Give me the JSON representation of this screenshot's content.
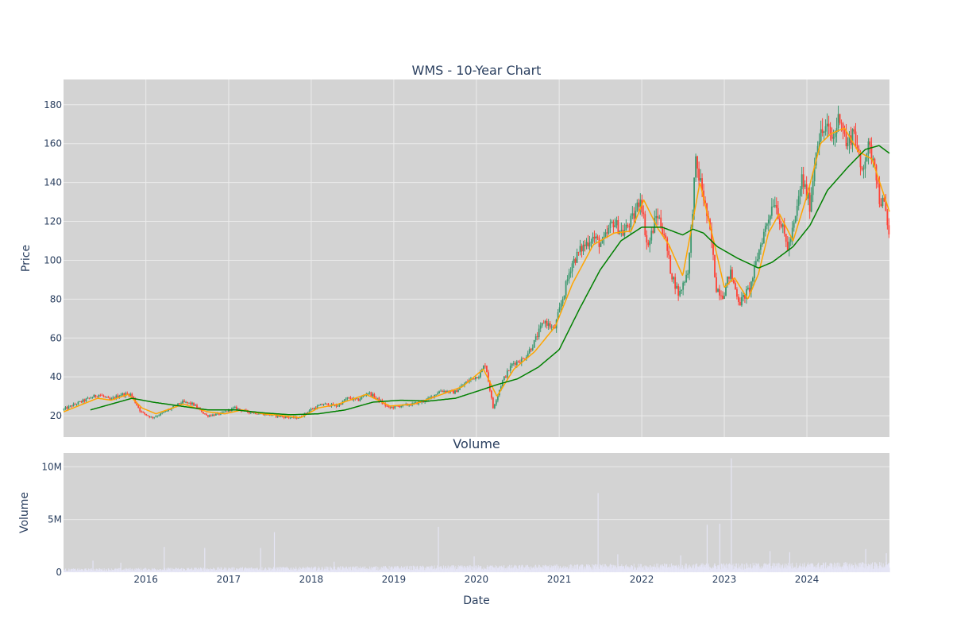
{
  "colors": {
    "panel_bg": "#d3d3d3",
    "grid": "#ebebeb",
    "increasing": "#3d9970",
    "decreasing": "#ff4136",
    "ma_short": "#ffa500",
    "ma_long": "#008000",
    "volume": "#e5e5f5",
    "text": "#2a3f5f"
  },
  "chart_data": [
    {
      "type": "candlestick",
      "title": "WMS - 10-Year Chart",
      "ylabel": "Price",
      "xlabel": "",
      "x_range": [
        "2015-01-02",
        "2024-12-31"
      ],
      "ylim": [
        9,
        193
      ],
      "y_ticks": [
        20,
        40,
        60,
        80,
        100,
        120,
        140,
        160,
        180
      ],
      "y_tick_labels": [
        "20",
        "40",
        "60",
        "80",
        "100",
        "120",
        "140",
        "160",
        "180"
      ],
      "x_gridlines": [
        "2016-01-01",
        "2017-01-01",
        "2018-01-01",
        "2019-01-01",
        "2020-01-01",
        "2021-01-01",
        "2022-01-01",
        "2023-01-01",
        "2024-01-01"
      ],
      "price_anchors": [
        [
          "2015-01-02",
          23
        ],
        [
          "2015-03-01",
          26
        ],
        [
          "2015-05-01",
          29
        ],
        [
          "2015-06-15",
          31
        ],
        [
          "2015-08-01",
          28
        ],
        [
          "2015-09-15",
          31
        ],
        [
          "2015-11-01",
          31
        ],
        [
          "2015-12-15",
          22
        ],
        [
          "2016-02-01",
          19
        ],
        [
          "2016-03-15",
          21
        ],
        [
          "2016-05-01",
          24
        ],
        [
          "2016-06-15",
          27
        ],
        [
          "2016-08-01",
          26
        ],
        [
          "2016-09-01",
          23
        ],
        [
          "2016-10-01",
          20
        ],
        [
          "2016-12-01",
          21
        ],
        [
          "2017-02-01",
          24
        ],
        [
          "2017-04-01",
          22
        ],
        [
          "2017-06-01",
          21
        ],
        [
          "2017-08-01",
          20
        ],
        [
          "2017-10-01",
          19
        ],
        [
          "2017-11-15",
          19
        ],
        [
          "2018-01-01",
          23
        ],
        [
          "2018-03-01",
          26
        ],
        [
          "2018-05-01",
          25
        ],
        [
          "2018-06-15",
          29
        ],
        [
          "2018-08-01",
          28
        ],
        [
          "2018-09-15",
          32
        ],
        [
          "2018-11-01",
          28
        ],
        [
          "2018-12-15",
          24
        ],
        [
          "2019-02-01",
          25
        ],
        [
          "2019-04-01",
          26
        ],
        [
          "2019-06-01",
          28
        ],
        [
          "2019-08-01",
          33
        ],
        [
          "2019-10-01",
          32
        ],
        [
          "2019-12-01",
          38
        ],
        [
          "2020-01-20",
          41
        ],
        [
          "2020-02-15",
          47
        ],
        [
          "2020-03-20",
          24
        ],
        [
          "2020-05-01",
          38
        ],
        [
          "2020-06-15",
          47
        ],
        [
          "2020-08-01",
          49
        ],
        [
          "2020-09-15",
          57
        ],
        [
          "2020-11-01",
          69
        ],
        [
          "2020-12-15",
          64
        ],
        [
          "2021-02-01",
          85
        ],
        [
          "2021-03-01",
          98
        ],
        [
          "2021-04-15",
          106
        ],
        [
          "2021-06-01",
          112
        ],
        [
          "2021-07-15",
          108
        ],
        [
          "2021-09-01",
          120
        ],
        [
          "2021-10-15",
          114
        ],
        [
          "2021-12-01",
          122
        ],
        [
          "2022-01-01",
          133
        ],
        [
          "2022-02-01",
          106
        ],
        [
          "2022-03-15",
          124
        ],
        [
          "2022-04-15",
          114
        ],
        [
          "2022-05-15",
          94
        ],
        [
          "2022-06-20",
          82
        ],
        [
          "2022-08-01",
          96
        ],
        [
          "2022-09-01",
          150
        ],
        [
          "2022-10-01",
          136
        ],
        [
          "2022-11-10",
          110
        ],
        [
          "2022-12-01",
          86
        ],
        [
          "2023-01-01",
          82
        ],
        [
          "2023-02-01",
          94
        ],
        [
          "2023-03-15",
          78
        ],
        [
          "2023-05-01",
          86
        ],
        [
          "2023-06-15",
          108
        ],
        [
          "2023-07-15",
          120
        ],
        [
          "2023-08-15",
          132
        ],
        [
          "2023-09-15",
          118
        ],
        [
          "2023-10-15",
          106
        ],
        [
          "2023-11-15",
          120
        ],
        [
          "2023-12-15",
          142
        ],
        [
          "2024-01-20",
          128
        ],
        [
          "2024-02-20",
          162
        ],
        [
          "2024-04-01",
          168
        ],
        [
          "2024-05-01",
          162
        ],
        [
          "2024-06-01",
          176
        ],
        [
          "2024-07-01",
          158
        ],
        [
          "2024-08-01",
          168
        ],
        [
          "2024-09-01",
          145
        ],
        [
          "2024-10-01",
          158
        ],
        [
          "2024-11-01",
          152
        ],
        [
          "2024-11-20",
          132
        ],
        [
          "2024-12-15",
          128
        ],
        [
          "2024-12-31",
          114
        ]
      ],
      "series": [
        {
          "points": [
            [
              "2015-01-02",
              22
            ],
            [
              "2015-06-01",
              29
            ],
            [
              "2015-08-01",
              28
            ],
            [
              "2015-10-15",
              31
            ],
            [
              "2015-12-15",
              24
            ],
            [
              "2016-02-15",
              21
            ],
            [
              "2016-06-15",
              26
            ],
            [
              "2016-10-01",
              22
            ],
            [
              "2016-12-15",
              21
            ],
            [
              "2017-03-01",
              23
            ],
            [
              "2017-06-01",
              21
            ],
            [
              "2017-09-01",
              20
            ],
            [
              "2017-11-15",
              19
            ],
            [
              "2018-02-01",
              24
            ],
            [
              "2018-05-01",
              26
            ],
            [
              "2018-09-01",
              31
            ],
            [
              "2018-12-15",
              25
            ],
            [
              "2019-04-01",
              26
            ],
            [
              "2019-08-01",
              31
            ],
            [
              "2019-11-01",
              35
            ],
            [
              "2020-02-01",
              44
            ],
            [
              "2020-04-01",
              30
            ],
            [
              "2020-06-15",
              44
            ],
            [
              "2020-09-15",
              53
            ],
            [
              "2020-12-15",
              66
            ],
            [
              "2021-03-01",
              88
            ],
            [
              "2021-06-01",
              108
            ],
            [
              "2021-09-01",
              114
            ],
            [
              "2021-11-15",
              115
            ],
            [
              "2022-01-10",
              131
            ],
            [
              "2022-03-15",
              116
            ],
            [
              "2022-05-01",
              108
            ],
            [
              "2022-07-01",
              92
            ],
            [
              "2022-09-15",
              140
            ],
            [
              "2022-11-15",
              110
            ],
            [
              "2023-01-01",
              86
            ],
            [
              "2023-02-15",
              91
            ],
            [
              "2023-04-15",
              80
            ],
            [
              "2023-06-01",
              93
            ],
            [
              "2023-07-15",
              114
            ],
            [
              "2023-09-01",
              124
            ],
            [
              "2023-11-01",
              110
            ],
            [
              "2024-01-01",
              133
            ],
            [
              "2024-03-01",
              160
            ],
            [
              "2024-04-15",
              165
            ],
            [
              "2024-06-15",
              168
            ],
            [
              "2024-08-15",
              156
            ],
            [
              "2024-10-15",
              152
            ],
            [
              "2024-12-31",
              125
            ]
          ]
        },
        {
          "points": [
            [
              "2015-05-01",
              23
            ],
            [
              "2015-08-01",
              26
            ],
            [
              "2015-11-01",
              29
            ],
            [
              "2016-02-01",
              27
            ],
            [
              "2016-06-01",
              25
            ],
            [
              "2016-10-01",
              23
            ],
            [
              "2017-02-01",
              23
            ],
            [
              "2017-06-01",
              21.5
            ],
            [
              "2017-10-01",
              20.5
            ],
            [
              "2018-02-01",
              21
            ],
            [
              "2018-06-01",
              23
            ],
            [
              "2018-10-01",
              27
            ],
            [
              "2019-02-01",
              28
            ],
            [
              "2019-06-01",
              27.5
            ],
            [
              "2019-10-01",
              29
            ],
            [
              "2020-01-15",
              33
            ],
            [
              "2020-04-01",
              36
            ],
            [
              "2020-07-01",
              39
            ],
            [
              "2020-10-01",
              45
            ],
            [
              "2021-01-01",
              54
            ],
            [
              "2021-04-01",
              75
            ],
            [
              "2021-07-01",
              95
            ],
            [
              "2021-10-01",
              110
            ],
            [
              "2022-01-01",
              117
            ],
            [
              "2022-04-01",
              117
            ],
            [
              "2022-07-01",
              113
            ],
            [
              "2022-08-15",
              116
            ],
            [
              "2022-10-01",
              114
            ],
            [
              "2022-12-01",
              107
            ],
            [
              "2023-03-01",
              101
            ],
            [
              "2023-06-01",
              96
            ],
            [
              "2023-08-01",
              99
            ],
            [
              "2023-11-01",
              107
            ],
            [
              "2024-01-15",
              118
            ],
            [
              "2024-04-01",
              136
            ],
            [
              "2024-07-01",
              148
            ],
            [
              "2024-09-15",
              157
            ],
            [
              "2024-11-15",
              159
            ],
            [
              "2024-12-31",
              155
            ]
          ]
        }
      ]
    },
    {
      "type": "bar",
      "title": "Volume",
      "ylabel": "Volume",
      "xlabel": "Date",
      "ylim": [
        0,
        11300000
      ],
      "y_ticks": [
        0,
        5000000,
        10000000
      ],
      "y_tick_labels": [
        "0",
        "5M",
        "10M"
      ],
      "x_ticks": [
        "2016-01-01",
        "2017-01-01",
        "2018-01-01",
        "2019-01-01",
        "2020-01-01",
        "2021-01-01",
        "2022-01-01",
        "2023-01-01",
        "2024-01-01"
      ],
      "x_tick_labels": [
        "2016",
        "2017",
        "2018",
        "2019",
        "2020",
        "2021",
        "2022",
        "2023",
        "2024"
      ],
      "baseline": 450000,
      "spikes": [
        [
          "2015-05-10",
          1100000
        ],
        [
          "2015-09-10",
          900000
        ],
        [
          "2016-03-20",
          2400000
        ],
        [
          "2016-09-15",
          2300000
        ],
        [
          "2017-05-20",
          2300000
        ],
        [
          "2017-07-20",
          3800000
        ],
        [
          "2018-04-10",
          1000000
        ],
        [
          "2019-07-15",
          4300000
        ],
        [
          "2019-12-20",
          1500000
        ],
        [
          "2021-06-20",
          7500000
        ],
        [
          "2021-09-15",
          1700000
        ],
        [
          "2022-06-20",
          1600000
        ],
        [
          "2022-10-15",
          4500000
        ],
        [
          "2022-12-10",
          4600000
        ],
        [
          "2023-01-30",
          10800000
        ],
        [
          "2023-07-20",
          2000000
        ],
        [
          "2023-10-15",
          1900000
        ],
        [
          "2024-09-15",
          2200000
        ],
        [
          "2024-12-15",
          1800000
        ]
      ]
    }
  ]
}
